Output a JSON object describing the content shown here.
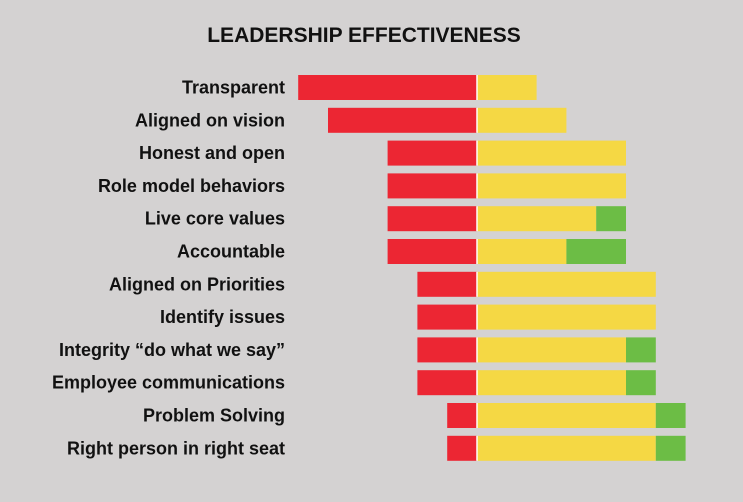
{
  "chart_data": {
    "type": "bar",
    "subtype": "diverging-stacked-horizontal",
    "title": "LEADERSHIP EFFECTIVENESS",
    "xlabel": "",
    "ylabel": "",
    "grid": false,
    "legend": "none",
    "categories": [
      "Transparent",
      "Aligned on vision",
      "Honest and open",
      "Role model behaviors",
      "Live core values",
      "Accountable",
      "Aligned on Priorities",
      "Identify issues",
      "Integrity “do what we say”",
      "Employee communications",
      "Problem Solving",
      "Right person in right seat"
    ],
    "series": [
      {
        "color": "#ec2633",
        "direction": "negative",
        "values": [
          60,
          50,
          30,
          30,
          30,
          30,
          20,
          20,
          20,
          20,
          10,
          10
        ]
      },
      {
        "color": "#f5d844",
        "direction": "positive",
        "values": [
          20,
          30,
          50,
          50,
          40,
          30,
          60,
          60,
          50,
          50,
          60,
          60
        ]
      },
      {
        "color": "#6cbd45",
        "direction": "positive",
        "values": [
          0,
          0,
          0,
          0,
          10,
          20,
          0,
          0,
          10,
          10,
          10,
          10
        ]
      }
    ]
  }
}
